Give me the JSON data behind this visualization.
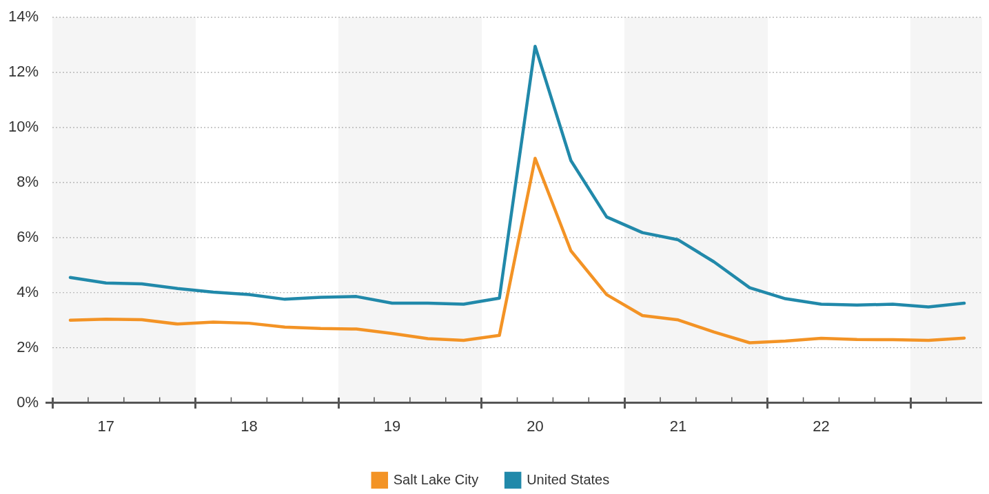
{
  "chart_data": {
    "type": "line",
    "categories": [
      null,
      "17",
      null,
      null,
      null,
      "18",
      null,
      null,
      null,
      "19",
      null,
      null,
      null,
      "20",
      null,
      null,
      null,
      "21",
      null,
      null,
      null,
      "22",
      null,
      null,
      null,
      null
    ],
    "series": [
      {
        "name": "Salt Lake City",
        "color": "#f39325",
        "values": [
          3.0,
          3.04,
          3.02,
          2.86,
          2.93,
          2.89,
          2.75,
          2.7,
          2.68,
          2.52,
          2.33,
          2.27,
          2.45,
          8.88,
          5.52,
          3.93,
          3.17,
          3.01,
          2.57,
          2.18,
          2.24,
          2.34,
          2.3,
          2.29,
          2.27,
          2.35
        ]
      },
      {
        "name": "United States",
        "color": "#2189aa",
        "values": [
          4.55,
          4.35,
          4.32,
          4.15,
          4.02,
          3.93,
          3.76,
          3.83,
          3.86,
          3.62,
          3.62,
          3.58,
          3.8,
          12.95,
          8.8,
          6.75,
          6.18,
          5.92,
          5.12,
          4.18,
          3.78,
          3.58,
          3.55,
          3.58,
          3.48,
          3.62
        ]
      }
    ],
    "ylim": [
      0,
      14
    ],
    "yticks": [
      {
        "value": 0,
        "label": "0%"
      },
      {
        "value": 2,
        "label": "2%"
      },
      {
        "value": 4,
        "label": "4%"
      },
      {
        "value": 6,
        "label": "6%"
      },
      {
        "value": 8,
        "label": "8%"
      },
      {
        "value": 10,
        "label": "10%"
      },
      {
        "value": 12,
        "label": "12%"
      },
      {
        "value": 14,
        "label": "14%"
      }
    ],
    "grid": "y",
    "legend": "bottom",
    "marker": "none",
    "line_style": "solid"
  }
}
